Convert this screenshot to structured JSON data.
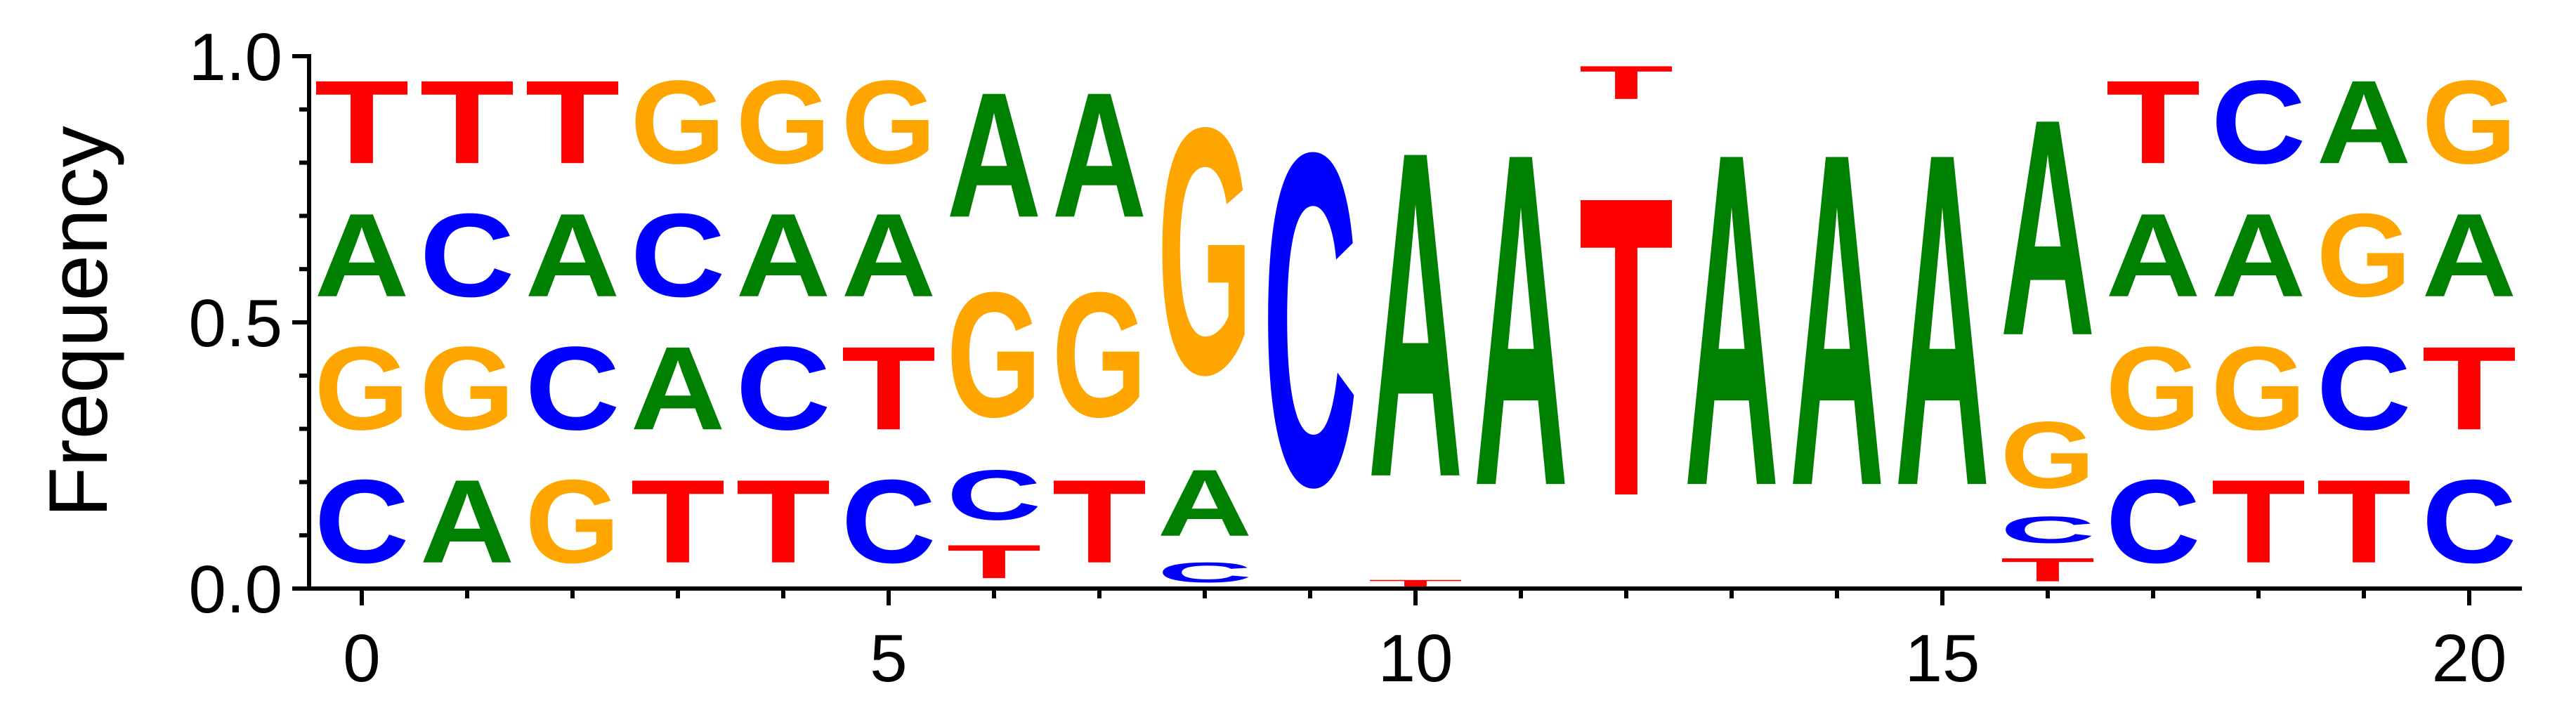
{
  "chart_data": {
    "type": "sequence-logo",
    "title": "",
    "xlabel": "",
    "ylabel": "Frequency",
    "xlim": [
      -0.5,
      20.5
    ],
    "ylim": [
      0,
      1
    ],
    "x_ticks": [
      0,
      5,
      10,
      15,
      20
    ],
    "x_tick_labels": [
      "0",
      "5",
      "10",
      "15",
      "20"
    ],
    "y_ticks": [
      0,
      0.5,
      1
    ],
    "y_tick_labels": [
      "0.0",
      "0.5",
      "1.0"
    ],
    "colors": {
      "A": "#008000",
      "C": "#0000ff",
      "G": "#ffa500",
      "T": "#ff0000"
    },
    "positions": [
      {
        "pos": 0,
        "stack": [
          [
            "C",
            0.25
          ],
          [
            "G",
            0.25
          ],
          [
            "A",
            0.25
          ],
          [
            "T",
            0.25
          ]
        ]
      },
      {
        "pos": 1,
        "stack": [
          [
            "A",
            0.25
          ],
          [
            "G",
            0.25
          ],
          [
            "C",
            0.25
          ],
          [
            "T",
            0.25
          ]
        ]
      },
      {
        "pos": 2,
        "stack": [
          [
            "G",
            0.25
          ],
          [
            "C",
            0.25
          ],
          [
            "A",
            0.25
          ],
          [
            "T",
            0.25
          ]
        ]
      },
      {
        "pos": 3,
        "stack": [
          [
            "T",
            0.25
          ],
          [
            "A",
            0.25
          ],
          [
            "C",
            0.25
          ],
          [
            "G",
            0.25
          ]
        ]
      },
      {
        "pos": 4,
        "stack": [
          [
            "T",
            0.25
          ],
          [
            "C",
            0.25
          ],
          [
            "A",
            0.25
          ],
          [
            "G",
            0.25
          ]
        ]
      },
      {
        "pos": 5,
        "stack": [
          [
            "C",
            0.25
          ],
          [
            "T",
            0.25
          ],
          [
            "A",
            0.25
          ],
          [
            "G",
            0.25
          ]
        ]
      },
      {
        "pos": 6,
        "stack": [
          [
            "T",
            0.1
          ],
          [
            "C",
            0.15
          ],
          [
            "G",
            0.375
          ],
          [
            "A",
            0.375
          ]
        ]
      },
      {
        "pos": 7,
        "stack": [
          [
            "T",
            0.25
          ],
          [
            "G",
            0.375
          ],
          [
            "A",
            0.375
          ]
        ]
      },
      {
        "pos": 8,
        "stack": [
          [
            "C",
            0.06
          ],
          [
            "A",
            0.2
          ],
          [
            "G",
            0.74
          ]
        ]
      },
      {
        "pos": 9,
        "stack": [
          [
            "C",
            1.0
          ]
        ]
      },
      {
        "pos": 10,
        "stack": [
          [
            "T",
            0.02
          ],
          [
            "A",
            0.98
          ]
        ]
      },
      {
        "pos": 11,
        "stack": [
          [
            "A",
            1.0
          ]
        ]
      },
      {
        "pos": 12,
        "stack": [
          [
            "T",
            0.9
          ],
          [
            "T",
            0.1
          ]
        ]
      },
      {
        "pos": 13,
        "stack": [
          [
            "A",
            1.0
          ]
        ]
      },
      {
        "pos": 14,
        "stack": [
          [
            "A",
            1.0
          ]
        ]
      },
      {
        "pos": 15,
        "stack": [
          [
            "A",
            1.0
          ]
        ]
      },
      {
        "pos": 16,
        "stack": [
          [
            "T",
            0.07
          ],
          [
            "C",
            0.08
          ],
          [
            "G",
            0.2
          ],
          [
            "A",
            0.65
          ]
        ]
      },
      {
        "pos": 17,
        "stack": [
          [
            "C",
            0.25
          ],
          [
            "G",
            0.25
          ],
          [
            "A",
            0.25
          ],
          [
            "T",
            0.25
          ]
        ]
      },
      {
        "pos": 18,
        "stack": [
          [
            "T",
            0.25
          ],
          [
            "G",
            0.25
          ],
          [
            "A",
            0.25
          ],
          [
            "C",
            0.25
          ]
        ]
      },
      {
        "pos": 19,
        "stack": [
          [
            "T",
            0.25
          ],
          [
            "C",
            0.25
          ],
          [
            "G",
            0.25
          ],
          [
            "A",
            0.25
          ]
        ]
      },
      {
        "pos": 20,
        "stack": [
          [
            "C",
            0.25
          ],
          [
            "T",
            0.25
          ],
          [
            "A",
            0.25
          ],
          [
            "G",
            0.25
          ]
        ]
      }
    ]
  }
}
